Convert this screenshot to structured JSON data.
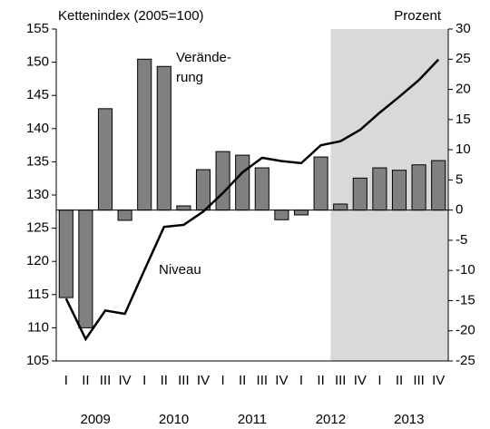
{
  "chart_data": {
    "type": "bar-line",
    "y_label": "Kettenindex (2005=100)",
    "y2_label": "Prozent",
    "categories": [
      "I",
      "II",
      "III",
      "IV",
      "I",
      "II",
      "III",
      "IV",
      "I",
      "II",
      "III",
      "IV",
      "I",
      "II",
      "III",
      "IV",
      "I",
      "II",
      "III",
      "IV"
    ],
    "years": [
      "2009",
      "2010",
      "2011",
      "2012",
      "2013"
    ],
    "shaded_from": 14,
    "shade_color": "#d9d9d9",
    "series": [
      {
        "name": "Veränderung",
        "type": "bar",
        "axis": "y2",
        "color": "#808080",
        "values": [
          -14.5,
          -19.5,
          16.8,
          -1.7,
          25.0,
          23.8,
          0.7,
          6.7,
          9.7,
          9.1,
          7.0,
          -1.6,
          -0.8,
          8.8,
          1.0,
          5.3,
          7.0,
          6.6,
          7.5,
          8.2
        ]
      },
      {
        "name": "Niveau",
        "type": "line",
        "axis": "y",
        "color": "#000000",
        "values": [
          114.4,
          108.3,
          112.6,
          112.1,
          118.7,
          125.2,
          125.5,
          127.5,
          130.3,
          133.4,
          135.6,
          135.1,
          134.8,
          137.5,
          138.1,
          139.8,
          142.4,
          144.8,
          147.3,
          150.4
        ]
      }
    ],
    "annotations": [
      [
        "Verände-",
        "rung"
      ],
      [
        "Niveau"
      ]
    ],
    "ylim": [
      105,
      155
    ],
    "yticks": [
      105,
      110,
      115,
      120,
      125,
      130,
      135,
      140,
      145,
      150,
      155
    ],
    "y2lim": [
      -25,
      30
    ],
    "y2ticks": [
      -25,
      -20,
      -15,
      -10,
      -5,
      0,
      5,
      10,
      15,
      20,
      25,
      30
    ]
  }
}
